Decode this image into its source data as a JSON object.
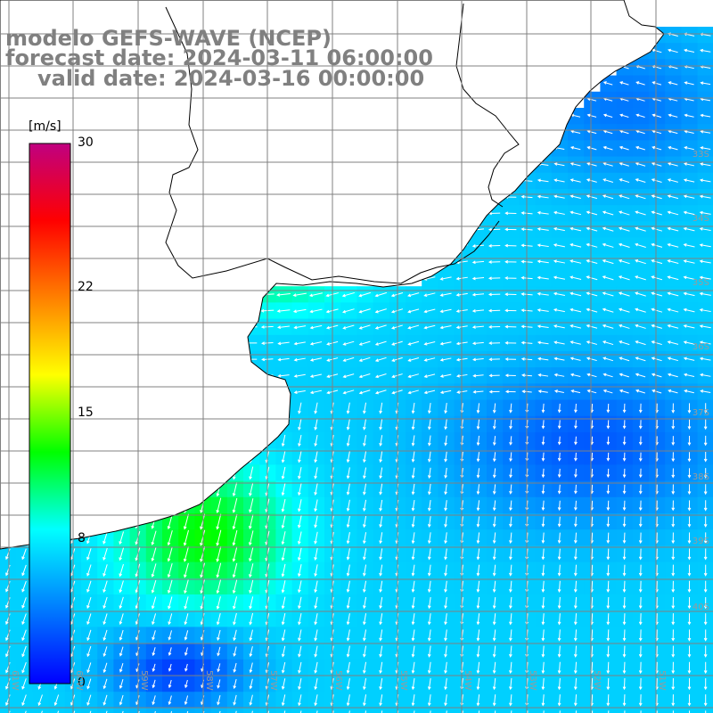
{
  "title": {
    "line1": "modelo GEFS-WAVE (NCEP)",
    "line2": "forecast date: 2024-03-11 06:00:00",
    "line3": "valid date: 2024-03-16 00:00:00"
  },
  "colorbar": {
    "unit": "[m/s]",
    "min": 0,
    "max": 30,
    "ticks": [
      "30",
      "22",
      "15",
      "8",
      "0"
    ],
    "tick_values": [
      30,
      22,
      15,
      8,
      0
    ],
    "colors": [
      "#0000ff",
      "#0080ff",
      "#00ffff",
      "#00ff00",
      "#ffff00",
      "#ff8000",
      "#ff0000",
      "#c00080"
    ]
  },
  "grid": {
    "lat_labels": [
      "33S",
      "34S",
      "35S",
      "36S",
      "37S",
      "38S",
      "39S",
      "40S"
    ],
    "lon_labels": [
      "61W",
      "60W",
      "59W",
      "58W",
      "57W",
      "56W",
      "55W",
      "54W",
      "53W",
      "52W",
      "51W"
    ]
  },
  "colors": {
    "grid_line": "#808080",
    "coast": "#000000",
    "land": "#ffffff",
    "arrow": "#ffffff"
  }
}
